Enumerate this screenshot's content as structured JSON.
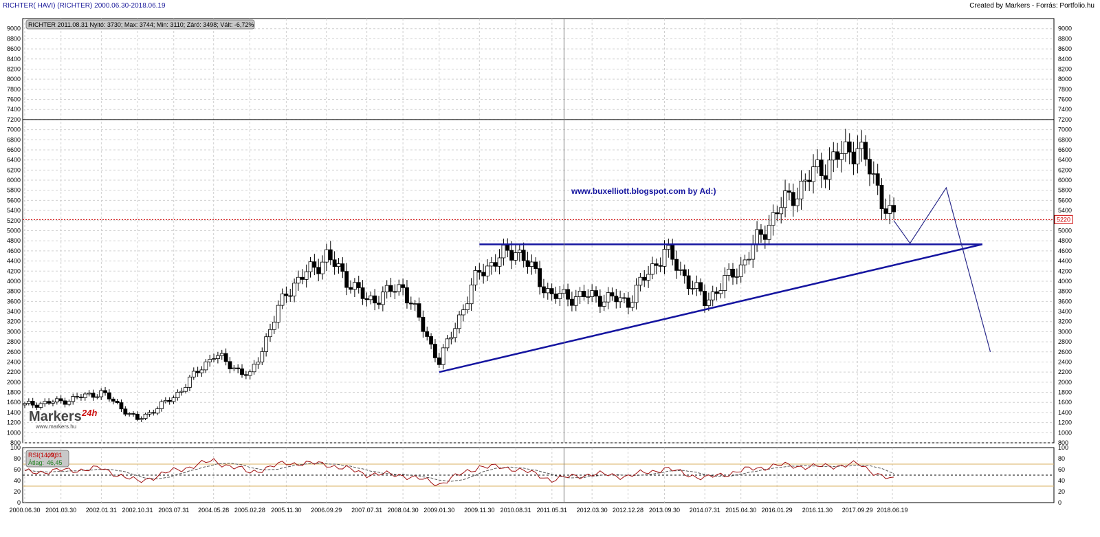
{
  "header": {
    "title_left": "RICHTER( HAVI)  (RICHTER)  2000.06.30-2018.06.19",
    "title_right": "Created by Markers - Forrás: Portfolio.hu"
  },
  "info_box": "RICHTER 2011.08.31 Nyitó: 3730; Max: 3744; Min: 3110; Záró: 3498; Vált: -6,72%",
  "annotation": "www.buxelliott.blogspot.com by Ad:)",
  "logo": {
    "brand": "Markers",
    "suffix": "24h",
    "url": "www.markers.hu"
  },
  "colors": {
    "candle_up": "#ffffff",
    "candle_down": "#000000",
    "trendline": "#1515a0",
    "rsi": "#a01010",
    "rsi_avg": "#208020",
    "last_price": "#cc0000",
    "rsi_band": "#d8b060"
  },
  "chart_data": [
    {
      "type": "candlestick",
      "title": "RICHTER( HAVI)  (RICHTER)",
      "ylim": [
        800,
        9200
      ],
      "y_ticks": [
        800,
        1000,
        1200,
        1400,
        1600,
        1800,
        2000,
        2200,
        2400,
        2600,
        2800,
        3000,
        3200,
        3400,
        3600,
        3800,
        4000,
        4200,
        4400,
        4600,
        4800,
        5000,
        5200,
        5400,
        5600,
        5800,
        6000,
        6200,
        6400,
        6600,
        6800,
        7000,
        7200,
        7400,
        7600,
        7800,
        8000,
        8200,
        8400,
        8600,
        8800,
        9000
      ],
      "x_tick_labels": [
        "2000.06.30",
        "2001.03.30",
        "2002.01.31",
        "2002.10.31",
        "2003.07.31",
        "2004.05.28",
        "2005.02.28",
        "2005.11.30",
        "2006.09.29",
        "2007.07.31",
        "2008.04.30",
        "2009.01.30",
        "2009.11.30",
        "2010.08.31",
        "2011.05.31",
        "2012.03.30",
        "2012.12.28",
        "2013.09.30",
        "2014.07.31",
        "2015.04.30",
        "2016.01.29",
        "2016.11.30",
        "2017.09.29",
        "2018.06.19"
      ],
      "close_anchors": [
        {
          "date": "2000.06.30",
          "value": 1550
        },
        {
          "date": "2001.03.30",
          "value": 1620
        },
        {
          "date": "2002.01.31",
          "value": 1800
        },
        {
          "date": "2002.10.31",
          "value": 1250
        },
        {
          "date": "2003.07.31",
          "value": 1700
        },
        {
          "date": "2004.05.28",
          "value": 2550
        },
        {
          "date": "2005.02.28",
          "value": 2100
        },
        {
          "date": "2005.11.30",
          "value": 3800
        },
        {
          "date": "2006.09.29",
          "value": 4500
        },
        {
          "date": "2007.07.31",
          "value": 3600
        },
        {
          "date": "2008.04.30",
          "value": 3900
        },
        {
          "date": "2009.01.30",
          "value": 2400
        },
        {
          "date": "2009.11.30",
          "value": 4200
        },
        {
          "date": "2010.08.31",
          "value": 4650
        },
        {
          "date": "2011.05.31",
          "value": 3700
        },
        {
          "date": "2012.03.30",
          "value": 3700
        },
        {
          "date": "2012.12.28",
          "value": 3600
        },
        {
          "date": "2013.09.30",
          "value": 4600
        },
        {
          "date": "2014.07.31",
          "value": 3600
        },
        {
          "date": "2015.04.30",
          "value": 4300
        },
        {
          "date": "2016.01.29",
          "value": 5400
        },
        {
          "date": "2016.11.30",
          "value": 6200
        },
        {
          "date": "2017.09.29",
          "value": 6700
        },
        {
          "date": "2018.06.19",
          "value": 5220
        }
      ],
      "last_price": 5220,
      "horizontal_levels": [
        7200,
        5220
      ],
      "cursor_date": "2011.08.31",
      "trendlines": [
        {
          "name": "resistance",
          "from": {
            "date": "2009.11.30",
            "value": 4730
          },
          "to": {
            "date": "2020.04.30",
            "value": 4730
          }
        },
        {
          "name": "support",
          "from": {
            "date": "2009.01.30",
            "value": 2200
          },
          "to": {
            "date": "2020.04.30",
            "value": 4730
          }
        }
      ],
      "projection": [
        {
          "date": "2018.06.30",
          "value": 5200
        },
        {
          "date": "2018.10.31",
          "value": 4750
        },
        {
          "date": "2019.07.31",
          "value": 5850
        },
        {
          "date": "2020.06.30",
          "value": 2600
        }
      ]
    },
    {
      "type": "line",
      "title": "RSI(14, 9)",
      "ylim": [
        0,
        100
      ],
      "y_ticks": [
        0,
        20,
        40,
        60,
        80,
        100
      ],
      "bands": [
        30,
        50,
        70
      ],
      "series": [
        {
          "name": "RSI(14, 9):",
          "last": "40,01"
        },
        {
          "name": "Átlag:",
          "last": "46,45"
        }
      ],
      "rsi_anchors": [
        {
          "date": "2000.06.30",
          "value": 55
        },
        {
          "date": "2001.03.30",
          "value": 58
        },
        {
          "date": "2002.01.31",
          "value": 62
        },
        {
          "date": "2002.10.31",
          "value": 38
        },
        {
          "date": "2003.07.31",
          "value": 58
        },
        {
          "date": "2004.05.28",
          "value": 76
        },
        {
          "date": "2005.02.28",
          "value": 55
        },
        {
          "date": "2005.11.30",
          "value": 72
        },
        {
          "date": "2006.09.29",
          "value": 70
        },
        {
          "date": "2007.07.31",
          "value": 52
        },
        {
          "date": "2008.04.30",
          "value": 50
        },
        {
          "date": "2009.01.30",
          "value": 34
        },
        {
          "date": "2009.11.30",
          "value": 66
        },
        {
          "date": "2010.08.31",
          "value": 62
        },
        {
          "date": "2011.05.31",
          "value": 42
        },
        {
          "date": "2012.03.30",
          "value": 52
        },
        {
          "date": "2012.12.28",
          "value": 48
        },
        {
          "date": "2013.09.30",
          "value": 62
        },
        {
          "date": "2014.07.31",
          "value": 44
        },
        {
          "date": "2015.04.30",
          "value": 58
        },
        {
          "date": "2016.01.29",
          "value": 68
        },
        {
          "date": "2016.11.30",
          "value": 65
        },
        {
          "date": "2017.09.29",
          "value": 70
        },
        {
          "date": "2018.06.19",
          "value": 40
        }
      ]
    }
  ]
}
